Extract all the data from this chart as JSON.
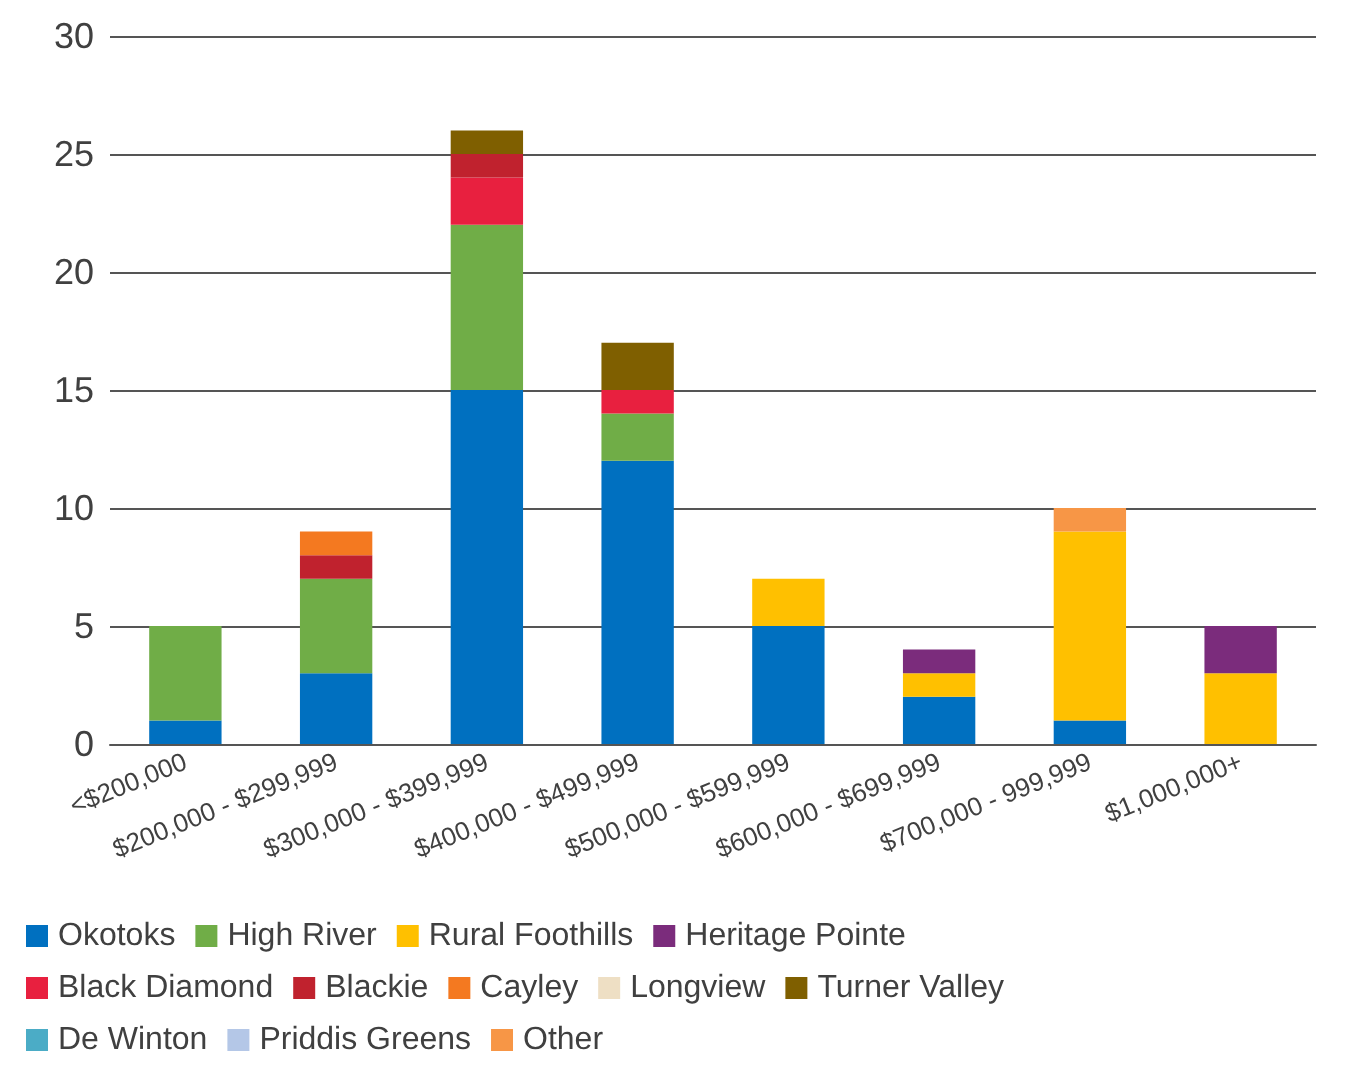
{
  "chart_data": {
    "type": "bar",
    "stacked": true,
    "categories": [
      "<$200,000",
      "$200,000 - $299,999",
      "$300,000 - $399,999",
      "$400,000 - $499,999",
      "$500,000 - $599,999",
      "$600,000 - $699,999",
      "$700,000 - 999,999",
      "$1,000,000+"
    ],
    "series": [
      {
        "name": "Okotoks",
        "color": "#0070c0",
        "values": [
          1,
          3,
          15,
          12,
          5,
          2,
          1,
          null
        ]
      },
      {
        "name": "High River",
        "color": "#70ad47",
        "values": [
          4,
          4,
          7,
          2,
          null,
          null,
          null,
          null
        ]
      },
      {
        "name": "Rural Foothills",
        "color": "#ffc000",
        "values": [
          null,
          null,
          null,
          null,
          2,
          1,
          8,
          3
        ]
      },
      {
        "name": "Heritage Pointe",
        "color": "#7b2c7c",
        "values": [
          null,
          null,
          null,
          null,
          null,
          1,
          null,
          2
        ]
      },
      {
        "name": "Black Diamond",
        "color": "#e8203f",
        "values": [
          null,
          null,
          2,
          1,
          null,
          null,
          null,
          null
        ]
      },
      {
        "name": "Blackie",
        "color": "#c0222e",
        "values": [
          null,
          1,
          1,
          null,
          null,
          null,
          null,
          null
        ]
      },
      {
        "name": "Cayley",
        "color": "#f47920",
        "values": [
          null,
          1,
          null,
          null,
          null,
          null,
          null,
          null
        ]
      },
      {
        "name": "Longview",
        "color": "#eedfc4",
        "values": [
          null,
          null,
          null,
          null,
          null,
          null,
          null,
          null
        ]
      },
      {
        "name": "Turner Valley",
        "color": "#7f5f00",
        "values": [
          null,
          null,
          1,
          2,
          null,
          null,
          null,
          null
        ]
      },
      {
        "name": "De Winton",
        "color": "#4bacc6",
        "values": [
          null,
          null,
          null,
          null,
          null,
          null,
          null,
          null
        ]
      },
      {
        "name": "Priddis Greens",
        "color": "#b4c7e7",
        "values": [
          null,
          null,
          null,
          null,
          null,
          null,
          null,
          null
        ]
      },
      {
        "name": "Other",
        "color": "#f79646",
        "values": [
          null,
          null,
          null,
          null,
          null,
          null,
          1,
          null
        ]
      }
    ],
    "ylim": [
      0,
      30
    ],
    "yticks": [
      0,
      5,
      10,
      15,
      20,
      25,
      30
    ],
    "grid": "y",
    "legend": "bottom"
  }
}
